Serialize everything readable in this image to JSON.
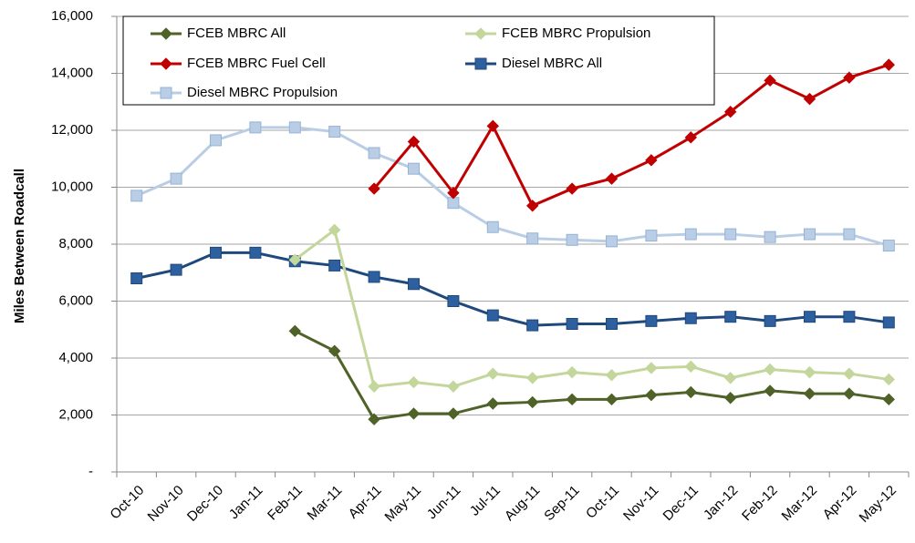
{
  "chart_data": {
    "type": "line",
    "y_label": "Miles Between Roadcall",
    "categories": [
      "Oct-10",
      "Nov-10",
      "Dec-10",
      "Jan-11",
      "Feb-11",
      "Mar-11",
      "Apr-11",
      "May-11",
      "Jun-11",
      "Jul-11",
      "Aug-11",
      "Sep-11",
      "Oct-11",
      "Nov-11",
      "Dec-11",
      "Jan-12",
      "Feb-12",
      "Mar-12",
      "Apr-12",
      "May-12"
    ],
    "series": [
      {
        "name": "FCEB MBRC All",
        "color": "#4f6228",
        "marker": "diamond",
        "values": [
          null,
          null,
          null,
          null,
          4950,
          4250,
          1850,
          2050,
          2050,
          2400,
          2450,
          2550,
          2550,
          2700,
          2800,
          2600,
          2850,
          2750,
          2750,
          2550
        ]
      },
      {
        "name": "FCEB MBRC Propulsion",
        "color": "#c3d69b",
        "marker": "diamond",
        "values": [
          null,
          null,
          null,
          null,
          7450,
          8500,
          3000,
          3150,
          3000,
          3450,
          3300,
          3500,
          3400,
          3650,
          3700,
          3300,
          3600,
          3500,
          3450,
          3250
        ]
      },
      {
        "name": "FCEB MBRC Fuel Cell",
        "color": "#c00000",
        "marker": "diamond",
        "values": [
          null,
          null,
          null,
          null,
          null,
          null,
          9950,
          11600,
          9800,
          12150,
          9350,
          9950,
          10300,
          10950,
          11750,
          12650,
          13750,
          13100,
          13850,
          14300
        ]
      },
      {
        "name": "Diesel MBRC All",
        "color": "#1f497d",
        "marker": "square",
        "values": [
          6800,
          7100,
          7700,
          7700,
          7400,
          7250,
          6850,
          6600,
          6000,
          5500,
          5150,
          5200,
          5200,
          5300,
          5400,
          5450,
          5300,
          5450,
          5450,
          5250
        ]
      },
      {
        "name": "Diesel MBRC Propulsion",
        "color": "#b9cde5",
        "marker": "square",
        "values": [
          9700,
          10300,
          11650,
          12100,
          12100,
          11950,
          11200,
          10650,
          9450,
          8600,
          8200,
          8150,
          8100,
          8300,
          8350,
          8350,
          8250,
          8350,
          8350,
          7950
        ]
      }
    ],
    "ylim": [
      0,
      16000
    ],
    "yticks": [
      {
        "value": 0,
        "label": "-"
      },
      {
        "value": 2000,
        "label": "2,000"
      },
      {
        "value": 4000,
        "label": "4,000"
      },
      {
        "value": 6000,
        "label": "6,000"
      },
      {
        "value": 8000,
        "label": "8,000"
      },
      {
        "value": 10000,
        "label": "10,000"
      },
      {
        "value": 12000,
        "label": "12,000"
      },
      {
        "value": 14000,
        "label": "14,000"
      },
      {
        "value": 16000,
        "label": "16,000"
      }
    ],
    "grid": true
  }
}
